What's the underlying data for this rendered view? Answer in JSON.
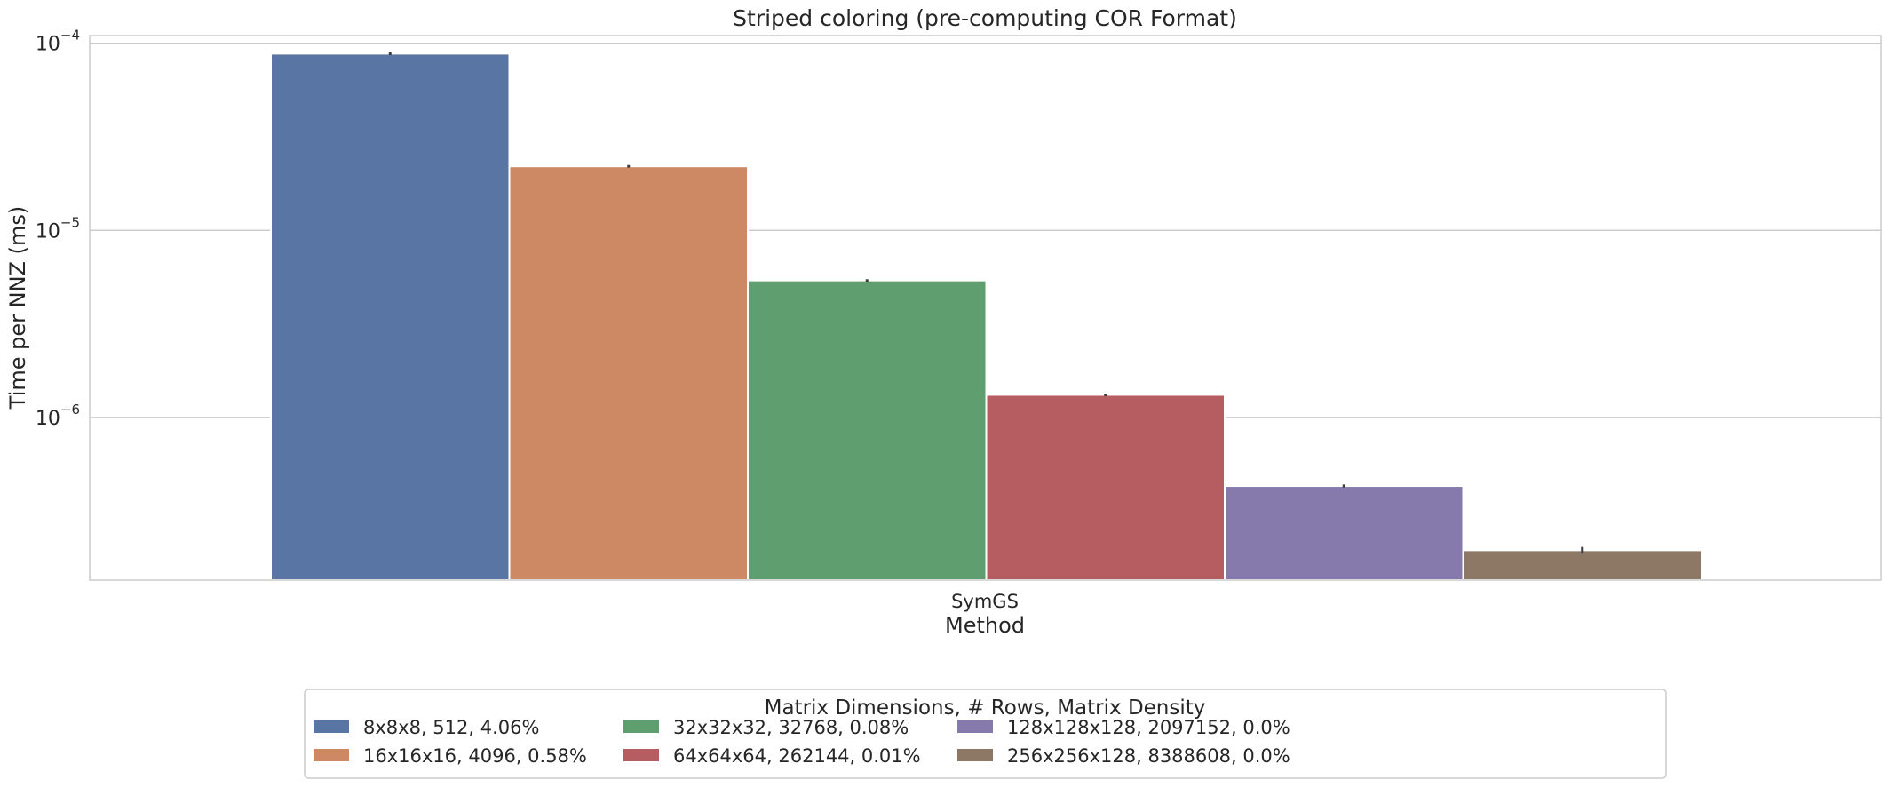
{
  "chart_data": {
    "type": "bar",
    "title": "Striped coloring (pre-computing COR Format)",
    "xlabel": "Method",
    "ylabel": "Time per NNZ (ms)",
    "yscale": "log",
    "ylim": [
      1.35e-07,
      0.00011
    ],
    "yticks": [
      {
        "value": 1e-06,
        "base": "10",
        "exp": "−6"
      },
      {
        "value": 1e-05,
        "base": "10",
        "exp": "−5"
      },
      {
        "value": 0.0001,
        "base": "10",
        "exp": "−4"
      }
    ],
    "categories": [
      "SymGS"
    ],
    "grid": true,
    "legend": {
      "title": "Matrix Dimensions, # Rows, Matrix Density",
      "placement": "bottom-center",
      "ncol": 4
    },
    "series": [
      {
        "name": "8x8x8, 512, 4.06%",
        "color": "#5975a4",
        "values": [
          8.8e-05
        ],
        "err": [
          1.5e-06
        ]
      },
      {
        "name": "16x16x16, 4096, 0.58%",
        "color": "#cc8963",
        "values": [
          2.2e-05
        ],
        "err": [
          3.5e-07
        ]
      },
      {
        "name": "32x32x32, 32768, 0.08%",
        "color": "#5f9e6e",
        "values": [
          5.4e-06
        ],
        "err": [
          8e-08
        ]
      },
      {
        "name": "64x64x64, 262144, 0.01%",
        "color": "#b55d60",
        "values": [
          1.32e-06
        ],
        "err": [
          2.2e-08
        ]
      },
      {
        "name": "128x128x128, 2097152, 0.0%",
        "color": "#857aab",
        "values": [
          4.3e-07
        ],
        "err": [
          8e-09
        ]
      },
      {
        "name": "256x256x128, 8388608, 0.0%",
        "color": "#8d7866",
        "values": [
          1.95e-07
        ],
        "err": [
          8e-09
        ]
      }
    ]
  }
}
